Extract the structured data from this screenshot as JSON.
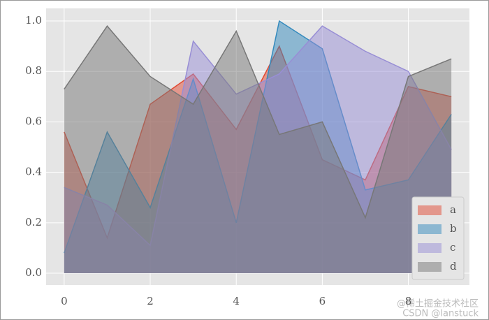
{
  "chart_data": {
    "type": "area",
    "x": [
      0,
      1,
      2,
      3,
      4,
      5,
      6,
      7,
      8,
      9
    ],
    "series": [
      {
        "name": "a",
        "color": "#E24A33",
        "values": [
          0.56,
          0.14,
          0.67,
          0.79,
          0.57,
          0.9,
          0.45,
          0.37,
          0.74,
          0.7
        ]
      },
      {
        "name": "b",
        "color": "#348ABD",
        "values": [
          0.08,
          0.56,
          0.26,
          0.77,
          0.2,
          1.0,
          0.89,
          0.33,
          0.37,
          0.63
        ]
      },
      {
        "name": "c",
        "color": "#988ED5",
        "values": [
          0.34,
          0.27,
          0.11,
          0.92,
          0.71,
          0.79,
          0.98,
          0.88,
          0.8,
          0.49
        ]
      },
      {
        "name": "d",
        "color": "#777777",
        "values": [
          0.73,
          0.98,
          0.78,
          0.67,
          0.96,
          0.55,
          0.6,
          0.22,
          0.78,
          0.85
        ]
      }
    ],
    "xlim": [
      -0.42,
      9.42
    ],
    "ylim": [
      -0.047,
      1.05
    ],
    "xticks": [
      0,
      2,
      4,
      6,
      8
    ],
    "yticks": [
      {
        "value": 0,
        "label": "0.0"
      },
      0.2,
      0.4,
      0.6,
      0.8,
      {
        "value": 1,
        "label": "1.0"
      }
    ],
    "grid": true,
    "legend": "lower right",
    "alpha": 0.5
  },
  "watermark": [
    "@稀土掘金技术社区",
    "CSDN @lanstuck"
  ]
}
